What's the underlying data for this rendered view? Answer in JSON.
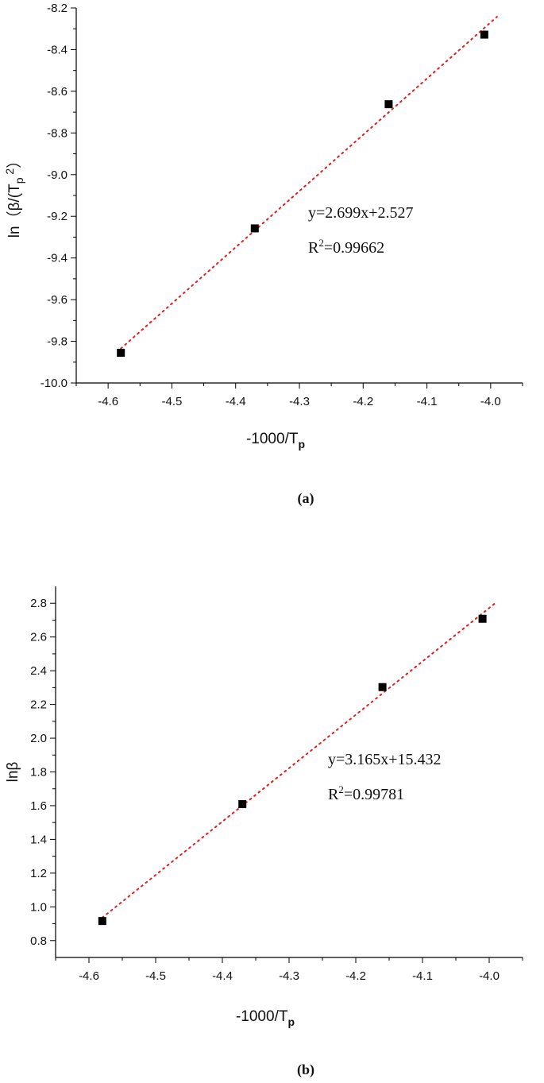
{
  "chart_data": [
    {
      "type": "scatter",
      "caption": "(a)",
      "xlabel": "-1000/T",
      "xlabel_sub": "p",
      "ylabel": "ln（β/(T",
      "ylabel_sub": "p",
      "ylabel_sup": "2",
      "ylabel_tail": "）",
      "xlim": [
        -4.65,
        -3.95
      ],
      "ylim": [
        -10.0,
        -8.2
      ],
      "xticks": [
        -4.6,
        -4.5,
        -4.4,
        -4.3,
        -4.2,
        -4.1,
        -4.0
      ],
      "xtick_labels": [
        "-4.6",
        "-4.5",
        "-4.4",
        "-4.3",
        "-4.2",
        "-4.1",
        "-4.0"
      ],
      "yticks": [
        -10.0,
        -9.8,
        -9.6,
        -9.4,
        -9.2,
        -9.0,
        -8.8,
        -8.6,
        -8.4,
        -8.2
      ],
      "ytick_labels": [
        "-10.0",
        "-9.8",
        "-9.6",
        "-9.4",
        "-9.2",
        "-9.0",
        "-8.8",
        "-8.6",
        "-8.4",
        "-8.2"
      ],
      "series": [
        {
          "x": [
            -4.58,
            -4.37,
            -4.16,
            -4.01
          ],
          "y": [
            -9.855,
            -9.258,
            -8.662,
            -8.328
          ]
        }
      ],
      "fit": {
        "slope": 2.699,
        "intercept": 2.527,
        "x_range": [
          -4.58,
          -4.01
        ],
        "color": "#e02020"
      },
      "equation": "y=2.699x+2.527",
      "r2_prefix": "R",
      "r2_sup": "2",
      "r2_value": "=0.99662",
      "marker_color": "#000000"
    },
    {
      "type": "scatter",
      "caption": "(b)",
      "xlabel": "-1000/T",
      "xlabel_sub": "p",
      "ylabel": "lnβ",
      "ylabel_sub": "",
      "ylabel_sup": "",
      "ylabel_tail": "",
      "xlim": [
        -4.65,
        -3.95
      ],
      "ylim": [
        0.7,
        2.9
      ],
      "xticks": [
        -4.6,
        -4.5,
        -4.4,
        -4.3,
        -4.2,
        -4.1,
        -4.0
      ],
      "xtick_labels": [
        "-4.6",
        "-4.5",
        "-4.4",
        "-4.3",
        "-4.2",
        "-4.1",
        "-4.0"
      ],
      "yticks": [
        0.8,
        1.0,
        1.2,
        1.4,
        1.6,
        1.8,
        2.0,
        2.2,
        2.4,
        2.6,
        2.8
      ],
      "ytick_labels": [
        "0.8",
        "1.0",
        "1.2",
        "1.4",
        "1.6",
        "1.8",
        "2.0",
        "2.2",
        "2.4",
        "2.6",
        "2.8"
      ],
      "series": [
        {
          "x": [
            -4.58,
            -4.37,
            -4.16,
            -4.01
          ],
          "y": [
            0.916,
            1.609,
            2.303,
            2.708
          ]
        }
      ],
      "fit": {
        "slope": 3.165,
        "intercept": 15.432,
        "x_range": [
          -4.58,
          -4.01
        ],
        "color": "#e02020"
      },
      "equation": "y=3.165x+15.432",
      "r2_prefix": "R",
      "r2_sup": "2",
      "r2_value": "=0.99781",
      "marker_color": "#000000"
    }
  ]
}
